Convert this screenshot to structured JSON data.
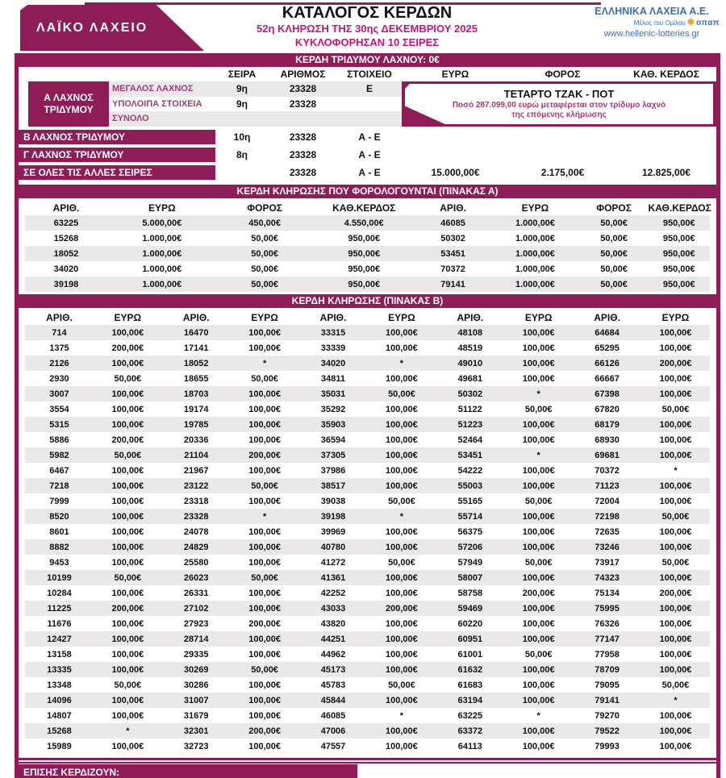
{
  "colors": {
    "accent": "#8E1C57",
    "accent_bright": "#C4147E",
    "accent_sub": "#A43A70",
    "blue": "#3A6FB7",
    "stripe": "#EAE8E9",
    "opap_orange": "#F59A23"
  },
  "header": {
    "brand": "ΛΑΪΚΟ ΛΑΧΕΙΟ",
    "title": "ΚΑΤΑΛΟΓΟΣ ΚΕΡΔΩΝ",
    "subtitle": "52η ΚΛΗΡΩΣΗ ΤΗΣ 30ης ΔΕΚΕΜΒΡΙΟΥ 2025",
    "series_note": "ΚΥΚΛΟΦΟΡΗΣΑΝ 10 ΣΕΙΡΕΣ",
    "company": "ΕΛΛΗΝΙΚΑ ΛΑΧΕΙΑ Α.Ε.",
    "member_note": "Μέλος του Ομίλου",
    "opap": "οπαπ",
    "website": "www.hellenic-lotteries.gr"
  },
  "triple_section": {
    "bar_title": "ΚΕΡΔΗ ΤΡΙΔΥΜΟΥ ΛΑΧΝΟΥ: 0€",
    "columns": [
      "ΣΕΙΡΑ",
      "ΑΡΙΘΜΟΣ",
      "ΣΤΟΙΧΕΙΟ",
      "ΕΥΡΩ",
      "ΦΟΡΟΣ",
      "ΚΑΘ. ΚΕΡΔΟΣ"
    ],
    "a_label_line1": "Α ΛΑΧΝΟΣ",
    "a_label_line2": "ΤΡΙΔΥΜΟΥ",
    "a_rows": [
      {
        "label": "ΜΕΓΑΛΟΣ ΛΑΧΝΟΣ",
        "seira": "9η",
        "num": "23328",
        "stoixeio": "Ε"
      },
      {
        "label": "ΥΠΟΛΟΙΠΑ ΣΤΟΙΧΕΙΑ",
        "seira": "9η",
        "num": "23328",
        "stoixeio": ""
      },
      {
        "label": "ΣΥΝΟΛΟ",
        "seira": "",
        "num": "",
        "stoixeio": ""
      }
    ],
    "jackpot": {
      "title": "ΤΕΤΑΡΤΟ ΤΖΑΚ - ΠΟΤ",
      "line1": "Ποσό 287.099,00 ευρώ μεταφέρεται στον τρίδυμο λαχνό",
      "line2": "της επόμενης κλήρωσης"
    },
    "other_rows": [
      {
        "label": "Β ΛΑΧΝΟΣ ΤΡΙΔΥΜΟΥ",
        "seira": "10η",
        "num": "23328",
        "stoixeio": "Α - Ε",
        "euro": "",
        "tax": "",
        "net": ""
      },
      {
        "label": "Γ ΛΑΧΝΟΣ ΤΡΙΔΥΜΟΥ",
        "seira": "8η",
        "num": "23328",
        "stoixeio": "Α - Ε",
        "euro": "",
        "tax": "",
        "net": ""
      },
      {
        "label": "ΣΕ ΟΛΕΣ ΤΙΣ ΑΛΛΕΣ ΣΕΙΡΕΣ",
        "seira": "",
        "num": "23328",
        "stoixeio": "Α - Ε",
        "euro": "15.000,00€",
        "tax": "2.175,00€",
        "net": "12.825,00€"
      }
    ]
  },
  "table_a": {
    "title": "ΚΕΡΔΗ ΚΛΗΡΩΣΗΣ ΠΟΥ ΦΟΡΟΛΟΓΟΥΝΤΑΙ (ΠΙΝΑΚΑΣ Α)",
    "headers": [
      "ΑΡΙΘ.",
      "ΕΥΡΩ",
      "ΦΟΡΟΣ",
      "ΚΑΘ.ΚΕΡΔΟΣ",
      "ΑΡΙΘ.",
      "ΕΥΡΩ",
      "ΦΟΡΟΣ",
      "ΚΑΘ.ΚΕΡΔΟΣ"
    ],
    "rows": [
      [
        "63225",
        "5.000,00€",
        "450,00€",
        "4.550,00€",
        "46085",
        "1.000,00€",
        "50,00€",
        "950,00€"
      ],
      [
        "15268",
        "1.000,00€",
        "50,00€",
        "950,00€",
        "50302",
        "1.000,00€",
        "50,00€",
        "950,00€"
      ],
      [
        "18052",
        "1.000,00€",
        "50,00€",
        "950,00€",
        "53451",
        "1.000,00€",
        "50,00€",
        "950,00€"
      ],
      [
        "34020",
        "1.000,00€",
        "50,00€",
        "950,00€",
        "70372",
        "1.000,00€",
        "50,00€",
        "950,00€"
      ],
      [
        "39198",
        "1.000,00€",
        "50,00€",
        "950,00€",
        "79141",
        "1.000,00€",
        "50,00€",
        "950,00€"
      ]
    ]
  },
  "table_b": {
    "title": "ΚΕΡΔΗ ΚΛΗΡΩΣΗΣ (ΠΙΝΑΚΑΣ Β)",
    "headers": [
      "ΑΡΙΘ.",
      "ΕΥΡΩ",
      "ΑΡΙΘ.",
      "ΕΥΡΩ",
      "ΑΡΙΘ.",
      "ΕΥΡΩ",
      "ΑΡΙΘ.",
      "ΕΥΡΩ",
      "ΑΡΙΘ.",
      "ΕΥΡΩ"
    ],
    "rows": [
      [
        "714",
        "100,00€",
        "16470",
        "100,00€",
        "33315",
        "100,00€",
        "48108",
        "100,00€",
        "64684",
        "100,00€"
      ],
      [
        "1375",
        "200,00€",
        "17141",
        "100,00€",
        "33339",
        "100,00€",
        "48519",
        "100,00€",
        "65295",
        "100,00€"
      ],
      [
        "2126",
        "100,00€",
        "18052",
        "*",
        "34020",
        "*",
        "49010",
        "100,00€",
        "66126",
        "200,00€"
      ],
      [
        "2930",
        "50,00€",
        "18655",
        "50,00€",
        "34811",
        "100,00€",
        "49681",
        "100,00€",
        "66667",
        "100,00€"
      ],
      [
        "3007",
        "100,00€",
        "18703",
        "100,00€",
        "35031",
        "50,00€",
        "50302",
        "*",
        "67398",
        "100,00€"
      ],
      [
        "3554",
        "100,00€",
        "19174",
        "100,00€",
        "35292",
        "100,00€",
        "51122",
        "50,00€",
        "67820",
        "50,00€"
      ],
      [
        "5315",
        "100,00€",
        "19785",
        "100,00€",
        "35903",
        "100,00€",
        "51223",
        "100,00€",
        "68179",
        "100,00€"
      ],
      [
        "5886",
        "200,00€",
        "20336",
        "100,00€",
        "36594",
        "100,00€",
        "52464",
        "100,00€",
        "68930",
        "100,00€"
      ],
      [
        "5982",
        "50,00€",
        "21104",
        "200,00€",
        "37305",
        "100,00€",
        "53451",
        "*",
        "69681",
        "100,00€"
      ],
      [
        "6467",
        "100,00€",
        "21967",
        "100,00€",
        "37986",
        "100,00€",
        "54222",
        "100,00€",
        "70372",
        "*"
      ],
      [
        "7218",
        "100,00€",
        "23122",
        "50,00€",
        "38517",
        "100,00€",
        "55003",
        "100,00€",
        "71123",
        "100,00€"
      ],
      [
        "7999",
        "100,00€",
        "23318",
        "100,00€",
        "39038",
        "50,00€",
        "55165",
        "50,00€",
        "72004",
        "100,00€"
      ],
      [
        "8520",
        "100,00€",
        "23328",
        "*",
        "39198",
        "*",
        "55714",
        "100,00€",
        "72198",
        "50,00€"
      ],
      [
        "8601",
        "100,00€",
        "24078",
        "100,00€",
        "39969",
        "100,00€",
        "56375",
        "100,00€",
        "72635",
        "100,00€"
      ],
      [
        "8882",
        "100,00€",
        "24829",
        "100,00€",
        "40780",
        "100,00€",
        "57206",
        "100,00€",
        "73246",
        "100,00€"
      ],
      [
        "9453",
        "100,00€",
        "25580",
        "100,00€",
        "41272",
        "50,00€",
        "57949",
        "50,00€",
        "73917",
        "50,00€"
      ],
      [
        "10199",
        "50,00€",
        "26023",
        "50,00€",
        "41361",
        "100,00€",
        "58007",
        "100,00€",
        "74323",
        "100,00€"
      ],
      [
        "10284",
        "100,00€",
        "26331",
        "100,00€",
        "42252",
        "100,00€",
        "58758",
        "200,00€",
        "75134",
        "200,00€"
      ],
      [
        "11225",
        "200,00€",
        "27102",
        "100,00€",
        "43033",
        "200,00€",
        "59469",
        "100,00€",
        "75995",
        "100,00€"
      ],
      [
        "11676",
        "100,00€",
        "27923",
        "200,00€",
        "43820",
        "100,00€",
        "60220",
        "100,00€",
        "76326",
        "100,00€"
      ],
      [
        "12427",
        "100,00€",
        "28714",
        "100,00€",
        "44251",
        "100,00€",
        "60951",
        "100,00€",
        "77147",
        "100,00€"
      ],
      [
        "13158",
        "100,00€",
        "29335",
        "100,00€",
        "44962",
        "100,00€",
        "61001",
        "50,00€",
        "77958",
        "100,00€"
      ],
      [
        "13335",
        "100,00€",
        "30269",
        "50,00€",
        "45173",
        "100,00€",
        "61632",
        "100,00€",
        "78709",
        "100,00€"
      ],
      [
        "13348",
        "50,00€",
        "30286",
        "100,00€",
        "45783",
        "50,00€",
        "61683",
        "100,00€",
        "79095",
        "50,00€"
      ],
      [
        "14096",
        "100,00€",
        "31007",
        "100,00€",
        "45844",
        "100,00€",
        "63194",
        "100,00€",
        "79141",
        "*"
      ],
      [
        "14807",
        "100,00€",
        "31679",
        "100,00€",
        "46085",
        "*",
        "63225",
        "*",
        "79270",
        "100,00€"
      ],
      [
        "15268",
        "*",
        "32301",
        "200,00€",
        "47006",
        "100,00€",
        "63372",
        "100,00€",
        "79522",
        "100,00€"
      ],
      [
        "15989",
        "100,00€",
        "32723",
        "100,00€",
        "47557",
        "100,00€",
        "64113",
        "100,00€",
        "79993",
        "100,00€"
      ]
    ]
  },
  "footer": {
    "also_win": "ΕΠΙΣΗΣ ΚΕΡΔΙΖΟΥΝ:"
  }
}
